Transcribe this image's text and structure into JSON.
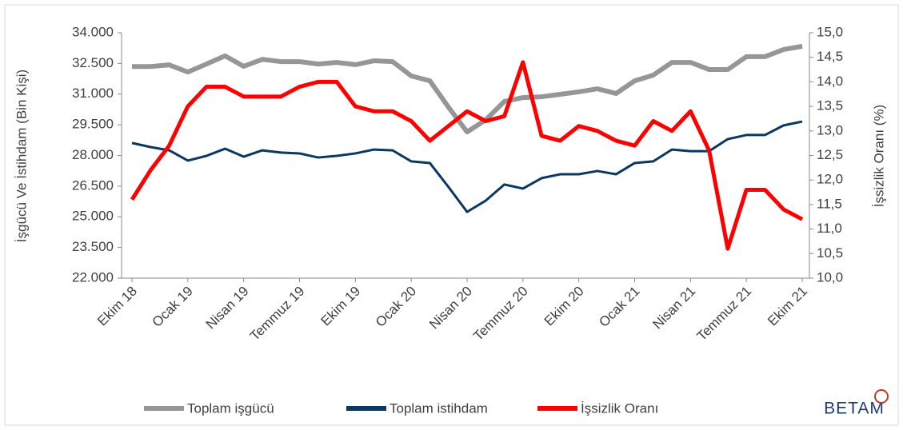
{
  "chart_data": {
    "type": "line",
    "y_axis_label": "İşgücü Ve İstihdam (Bin Kişi)",
    "y2_axis_label": "İşsizlik Oranı (%)",
    "categories": [
      "Ekim 18",
      null,
      null,
      "Ocak 19",
      null,
      null,
      "Nisan 19",
      null,
      null,
      "Temmuz 19",
      null,
      null,
      "Ekim 19",
      null,
      null,
      "Ocak 20",
      null,
      null,
      "Nisan 20",
      null,
      null,
      "Temmuz 20",
      null,
      null,
      "Ekim 20",
      null,
      null,
      "Ocak 21",
      null,
      null,
      "Nisan 21",
      null,
      null,
      "Temmuz 21",
      null,
      null,
      "Ekim 21"
    ],
    "series": [
      {
        "name": "Toplam işgücü",
        "color": "#969696",
        "axis": "y",
        "values": [
          32350,
          32350,
          32430,
          32080,
          32470,
          32870,
          32360,
          32700,
          32590,
          32590,
          32470,
          32550,
          32440,
          32630,
          32590,
          31890,
          31650,
          30360,
          29150,
          29740,
          30640,
          30830,
          30870,
          30990,
          31110,
          31260,
          31030,
          31650,
          31930,
          32550,
          32550,
          32200,
          32200,
          32830,
          32830,
          33180,
          33340
        ]
      },
      {
        "name": "Toplam istihdam",
        "color": "#0b3761",
        "axis": "y",
        "values": [
          28610,
          28410,
          28250,
          27750,
          27980,
          28330,
          27940,
          28250,
          28140,
          28100,
          27900,
          27980,
          28100,
          28290,
          28250,
          27710,
          27630,
          26460,
          25240,
          25790,
          26580,
          26380,
          26890,
          27080,
          27080,
          27240,
          27080,
          27630,
          27710,
          28290,
          28210,
          28210,
          28800,
          29000,
          29000,
          29470,
          29660
        ]
      },
      {
        "name": "İşsizlik Oranı",
        "color": "#ff0000",
        "axis": "y2",
        "values": [
          11.6,
          12.2,
          12.7,
          13.5,
          13.9,
          13.9,
          13.7,
          13.7,
          13.7,
          13.9,
          14.0,
          14.0,
          13.5,
          13.4,
          13.4,
          13.2,
          12.8,
          13.1,
          13.4,
          13.2,
          13.3,
          14.4,
          12.9,
          12.8,
          13.1,
          13.0,
          12.8,
          12.7,
          13.2,
          13.0,
          13.4,
          12.6,
          10.6,
          11.8,
          11.8,
          11.4,
          11.2
        ]
      }
    ],
    "ylim": [
      22000,
      34000
    ],
    "yticks": [
      {
        "value": 22000,
        "label": "22.000"
      },
      {
        "value": 23500,
        "label": "23.500"
      },
      {
        "value": 25000,
        "label": "25.000"
      },
      {
        "value": 26500,
        "label": "26.500"
      },
      {
        "value": 28000,
        "label": "28.000"
      },
      {
        "value": 29500,
        "label": "29.500"
      },
      {
        "value": 31000,
        "label": "31.000"
      },
      {
        "value": 32500,
        "label": "32.500"
      },
      {
        "value": 34000,
        "label": "34.000"
      }
    ],
    "y2lim": [
      10,
      15
    ],
    "y2ticks": [
      {
        "value": 10,
        "label": "10,0"
      },
      {
        "value": 10.5,
        "label": "10,5"
      },
      {
        "value": 11,
        "label": "11,0"
      },
      {
        "value": 11.5,
        "label": "11,5"
      },
      {
        "value": 12,
        "label": "12,0"
      },
      {
        "value": 12.5,
        "label": "12,5"
      },
      {
        "value": 13,
        "label": "13,0"
      },
      {
        "value": 13.5,
        "label": "13,5"
      },
      {
        "value": 14,
        "label": "14,0"
      },
      {
        "value": 14.5,
        "label": "14,5"
      },
      {
        "value": 15,
        "label": "15,0"
      }
    ],
    "grid": false,
    "legend": "bottom",
    "logo": "BETAM"
  }
}
